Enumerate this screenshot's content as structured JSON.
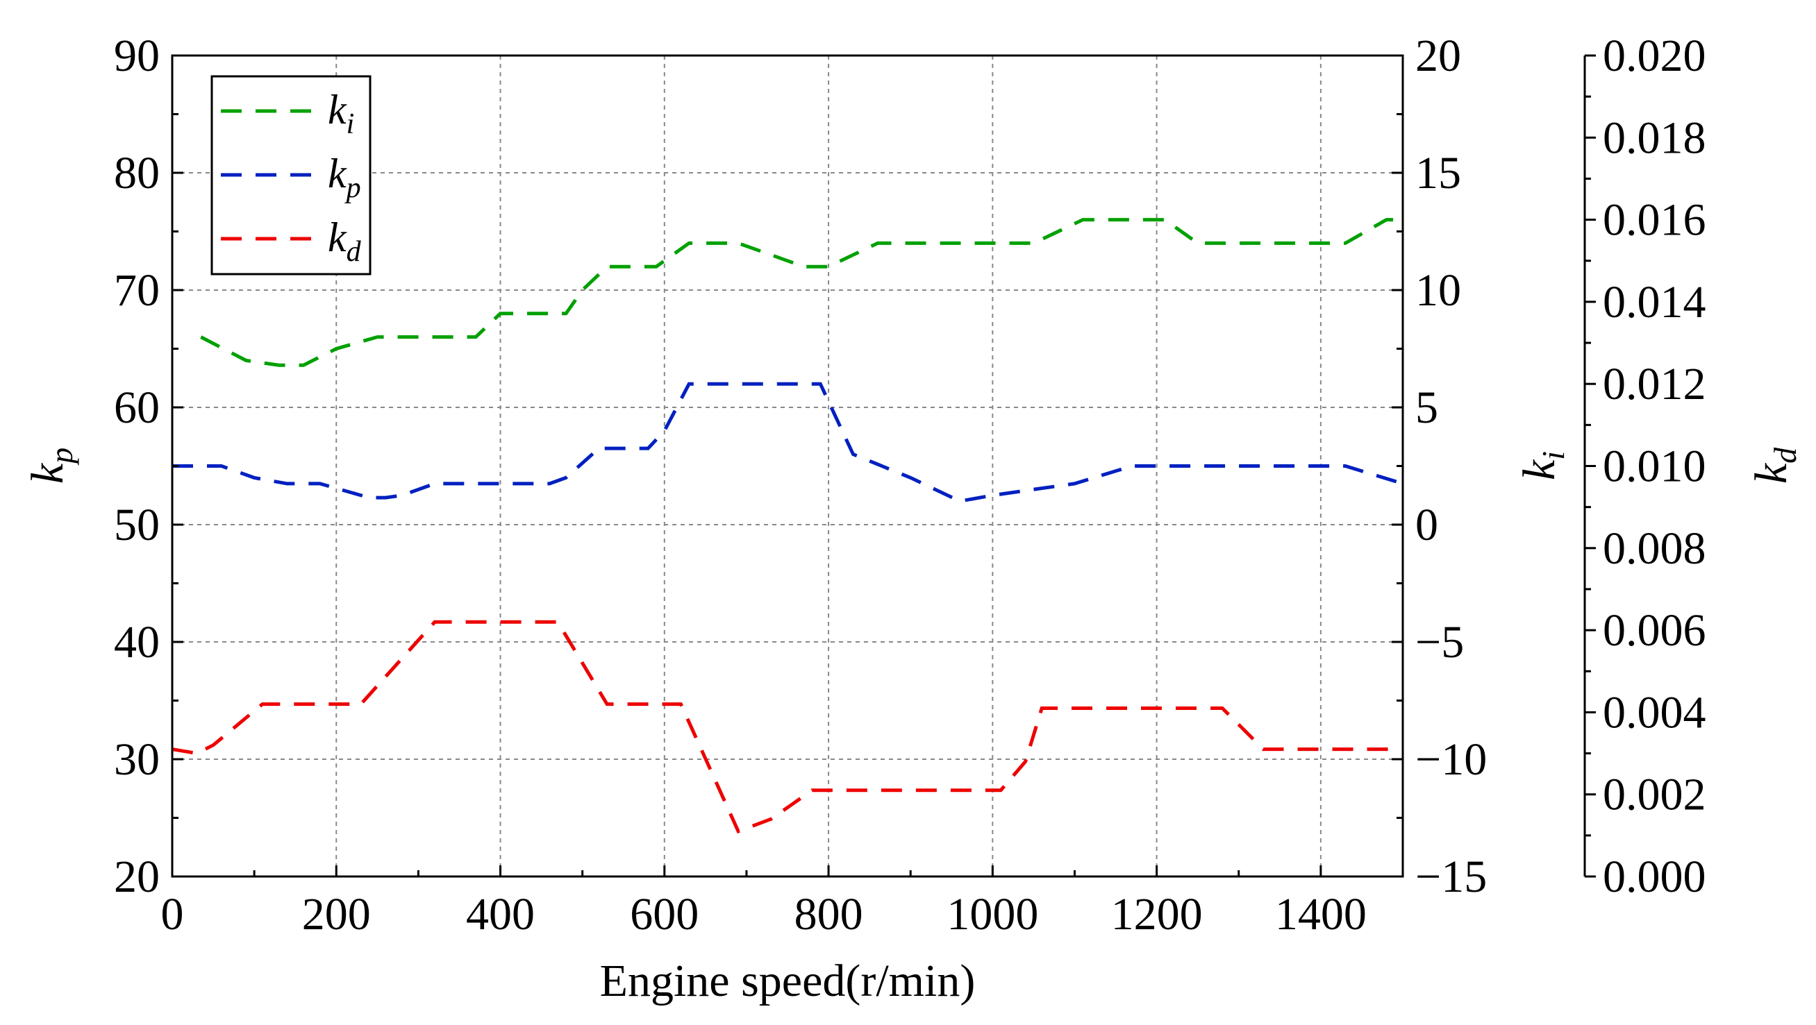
{
  "chart_data": {
    "type": "line",
    "xlabel": "Engine speed(r/min)",
    "xlim": [
      0,
      1500
    ],
    "xticks": [
      0,
      200,
      400,
      600,
      800,
      1000,
      1200,
      1400
    ],
    "xtick_labels": [
      "0",
      "200",
      "400",
      "600",
      "800",
      "1000",
      "1200",
      "1400"
    ],
    "grid": true,
    "legend_position": "top-left",
    "axes": [
      {
        "id": "kp",
        "position": "left",
        "label": "k",
        "label_sub": "p",
        "ylim": [
          20,
          90
        ],
        "ticks": [
          20,
          30,
          40,
          50,
          60,
          70,
          80,
          90
        ],
        "tick_labels": [
          "20",
          "30",
          "40",
          "50",
          "60",
          "70",
          "80",
          "90"
        ]
      },
      {
        "id": "ki",
        "position": "right",
        "label": "k",
        "label_sub": "i",
        "ylim": [
          -15,
          20
        ],
        "ticks": [
          -15,
          -10,
          -5,
          0,
          5,
          10,
          15,
          20
        ],
        "tick_labels": [
          "−15",
          "−10",
          "−5",
          "0",
          "5",
          "10",
          "15",
          "20"
        ]
      },
      {
        "id": "kd",
        "position": "far-right",
        "label": "k",
        "label_sub": "d",
        "ylim": [
          0,
          0.02
        ],
        "ticks": [
          0,
          0.002,
          0.004,
          0.006,
          0.008,
          0.01,
          0.012,
          0.014,
          0.016,
          0.018,
          0.02
        ],
        "tick_labels": [
          "0.000",
          "0.002",
          "0.004",
          "0.006",
          "0.008",
          "0.010",
          "0.012",
          "0.014",
          "0.016",
          "0.018",
          "0.020"
        ]
      }
    ],
    "series": [
      {
        "name": "k",
        "name_sub": "i",
        "axis": "ki",
        "color": "#00a000",
        "x": [
          35,
          90,
          130,
          160,
          200,
          250,
          350,
          370,
          400,
          450,
          480,
          500,
          530,
          590,
          630,
          690,
          770,
          800,
          830,
          860,
          900,
          1000,
          1050,
          1110,
          1180,
          1210,
          1250,
          1300,
          1350,
          1400,
          1430,
          1480,
          1500
        ],
        "y": [
          8,
          7,
          6.8,
          6.8,
          7.5,
          8,
          8,
          8,
          9,
          9,
          9,
          10,
          11,
          11,
          12,
          12,
          11,
          11,
          11.5,
          12,
          12,
          12,
          12,
          13,
          13,
          13,
          12,
          12,
          12,
          12,
          12,
          13,
          13
        ]
      },
      {
        "name": "k",
        "name_sub": "p",
        "axis": "kp",
        "color": "#0020c0",
        "x": [
          0,
          30,
          60,
          100,
          140,
          180,
          240,
          260,
          280,
          320,
          400,
          460,
          480,
          520,
          580,
          600,
          630,
          790,
          830,
          900,
          960,
          1000,
          1050,
          1100,
          1170,
          1220,
          1300,
          1400,
          1430,
          1500
        ],
        "y": [
          55,
          55,
          55,
          54,
          53.5,
          53.5,
          52.3,
          52.3,
          52.5,
          53.5,
          53.5,
          53.5,
          54,
          56.5,
          56.5,
          58,
          62,
          62,
          56,
          54,
          52,
          52.5,
          53,
          53.5,
          55,
          55,
          55,
          55,
          55,
          53.5
        ]
      },
      {
        "name": "k",
        "name_sub": "d",
        "axis": "kd",
        "color": "#ee0000",
        "x": [
          0,
          30,
          50,
          110,
          170,
          230,
          320,
          370,
          460,
          470,
          530,
          560,
          600,
          620,
          690,
          730,
          780,
          850,
          1000,
          1010,
          1040,
          1060,
          1270,
          1280,
          1330,
          1500
        ],
        "y": [
          0.0031,
          0.003,
          0.0032,
          0.0042,
          0.0042,
          0.0042,
          0.0062,
          0.0062,
          0.0062,
          0.0062,
          0.0042,
          0.0042,
          0.0042,
          0.0042,
          0.0011,
          0.0014,
          0.0021,
          0.0021,
          0.0021,
          0.0021,
          0.0028,
          0.0041,
          0.0041,
          0.0041,
          0.0031,
          0.0031
        ]
      }
    ]
  }
}
